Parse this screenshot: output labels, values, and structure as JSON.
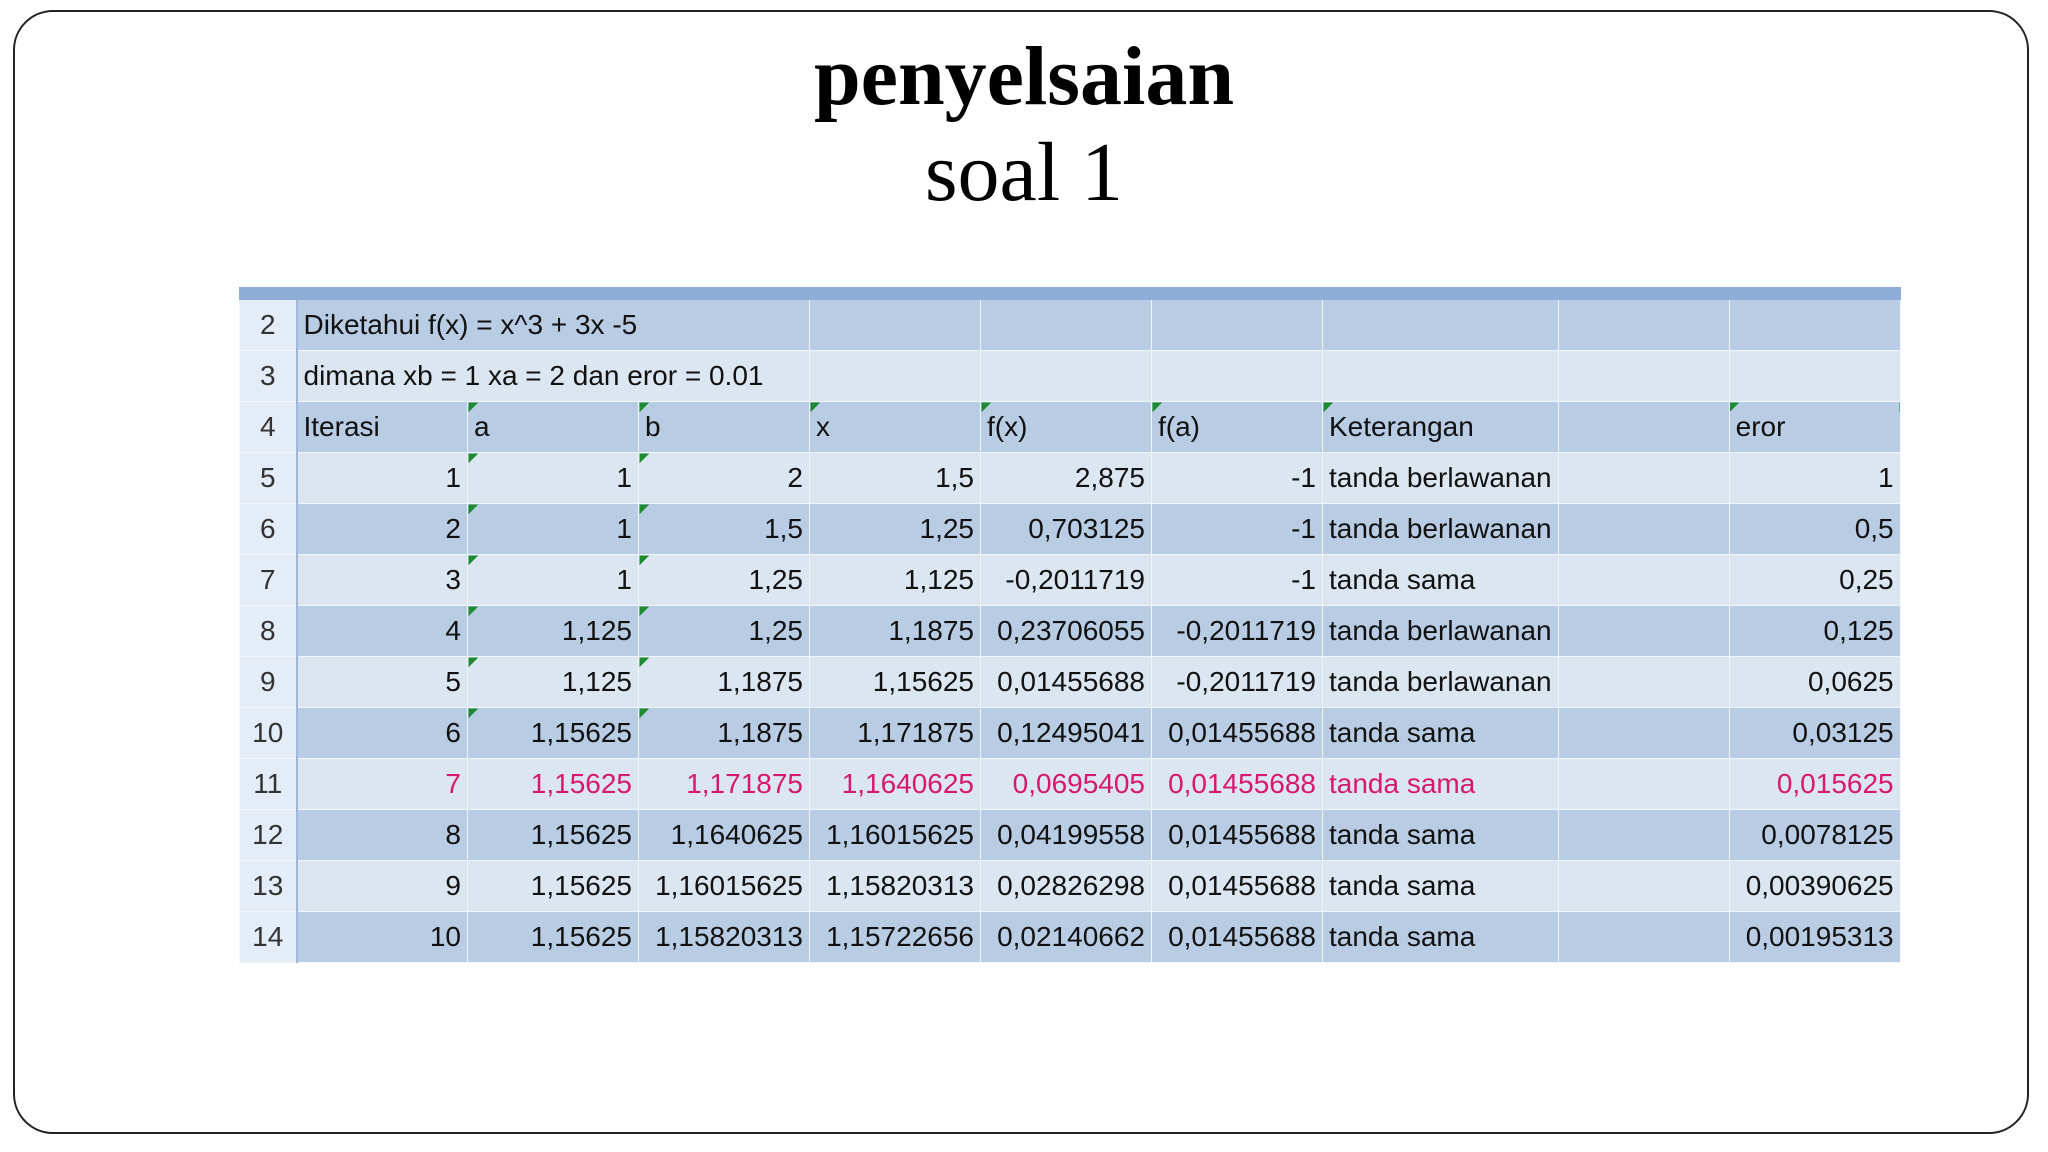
{
  "slide": {
    "title": "penyelsaian",
    "subtitle": "soal 1"
  },
  "sheet": {
    "given": {
      "num": "2",
      "text": "Diketahui f(x) = x^3 + 3x -5"
    },
    "condition": {
      "num": "3",
      "text": "dimana xb = 1 xa = 2 dan eror = 0.01"
    },
    "header": {
      "num": "4",
      "columns": [
        "Iterasi",
        "a",
        "b",
        "x",
        "f(x)",
        "f(a)",
        "Keterangan",
        "eror"
      ]
    },
    "rows": [
      {
        "num": "5",
        "cells": [
          "1",
          "1",
          "2",
          "1,5",
          "2,875",
          "-1",
          "tanda berlawanan",
          "1"
        ]
      },
      {
        "num": "6",
        "cells": [
          "2",
          "1",
          "1,5",
          "1,25",
          "0,703125",
          "-1",
          "tanda berlawanan",
          "0,5"
        ]
      },
      {
        "num": "7",
        "cells": [
          "3",
          "1",
          "1,25",
          "1,125",
          "-0,2011719",
          "-1",
          "tanda sama",
          "0,25"
        ]
      },
      {
        "num": "8",
        "cells": [
          "4",
          "1,125",
          "1,25",
          "1,1875",
          "0,23706055",
          "-0,2011719",
          "tanda berlawanan",
          "0,125"
        ]
      },
      {
        "num": "9",
        "cells": [
          "5",
          "1,125",
          "1,1875",
          "1,15625",
          "0,01455688",
          "-0,2011719",
          "tanda berlawanan",
          "0,0625"
        ]
      },
      {
        "num": "10",
        "cells": [
          "6",
          "1,15625",
          "1,1875",
          "1,171875",
          "0,12495041",
          "0,01455688",
          "tanda sama",
          "0,03125"
        ]
      },
      {
        "num": "11",
        "highlight": true,
        "cells": [
          "7",
          "1,15625",
          "1,171875",
          "1,1640625",
          "0,0695405",
          "0,01455688",
          "tanda sama",
          "0,015625"
        ]
      },
      {
        "num": "12",
        "cells": [
          "8",
          "1,15625",
          "1,1640625",
          "1,16015625",
          "0,04199558",
          "0,01455688",
          "tanda sama",
          "0,0078125"
        ]
      },
      {
        "num": "13",
        "cells": [
          "9",
          "1,15625",
          "1,16015625",
          "1,15820313",
          "0,02826298",
          "0,01455688",
          "tanda sama",
          "0,00390625"
        ]
      },
      {
        "num": "14",
        "cells": [
          "10",
          "1,15625",
          "1,15820313",
          "1,15722656",
          "0,02140662",
          "0,01455688",
          "tanda sama",
          "0,00195313"
        ]
      }
    ]
  }
}
